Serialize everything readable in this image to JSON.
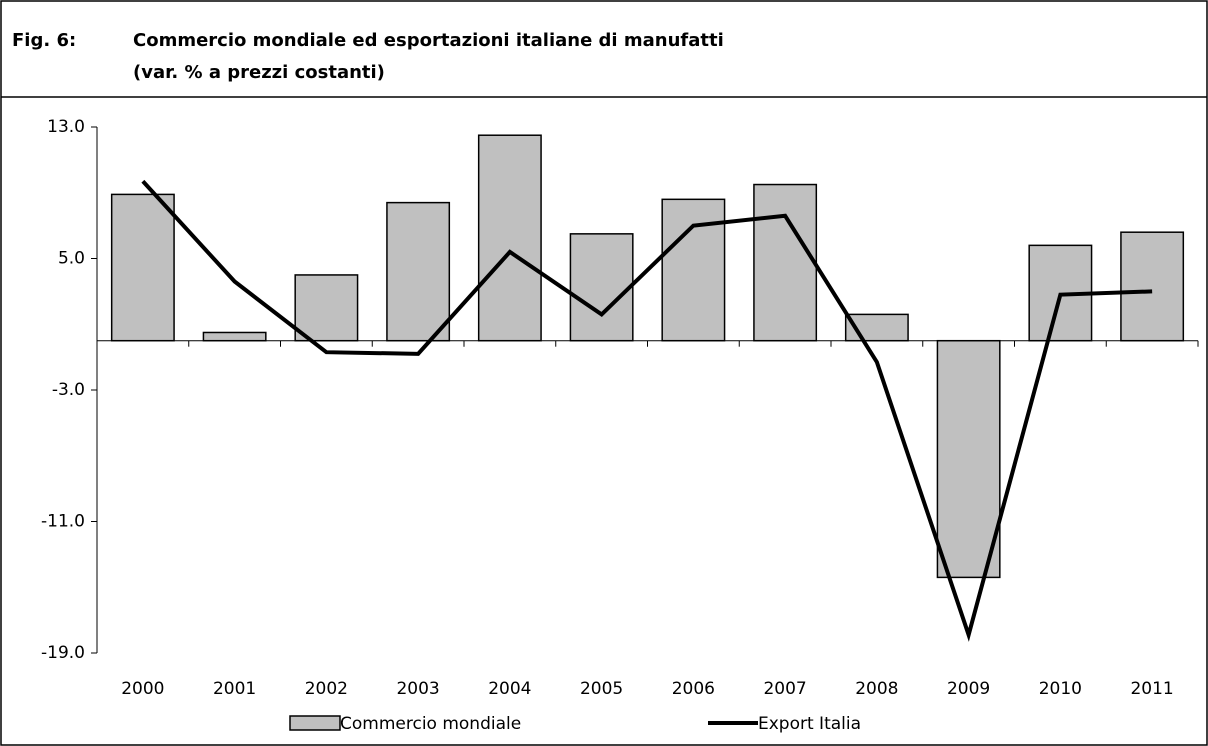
{
  "chart_data": {
    "type": "bar_line",
    "figure_label": "Fig. 6:",
    "title": "Commercio mondiale ed esportazioni italiane di manufatti",
    "subtitle": "(var. % a prezzi costanti)",
    "categories": [
      "2000",
      "2001",
      "2002",
      "2003",
      "2004",
      "2005",
      "2006",
      "2007",
      "2008",
      "2009",
      "2010",
      "2011"
    ],
    "series": [
      {
        "name": "Commercio mondiale",
        "type": "bar",
        "color": "#c0c0c0",
        "values": [
          8.9,
          0.5,
          4.0,
          8.4,
          12.5,
          6.5,
          8.6,
          9.5,
          1.6,
          -14.4,
          5.8,
          6.6
        ]
      },
      {
        "name": "Export Italia",
        "type": "line",
        "color": "#000000",
        "values": [
          9.7,
          3.6,
          -0.7,
          -0.8,
          5.4,
          1.6,
          7.0,
          7.6,
          -1.3,
          -17.9,
          2.8,
          3.0
        ]
      }
    ],
    "ylim": [
      -19,
      13
    ],
    "yticks": [
      {
        "value": 13,
        "label": "13.0"
      },
      {
        "value": 5,
        "label": "5.0"
      },
      {
        "value": -3,
        "label": "-3.0"
      },
      {
        "value": -11,
        "label": "-11.0"
      },
      {
        "value": -19,
        "label": "-19.0"
      }
    ]
  }
}
